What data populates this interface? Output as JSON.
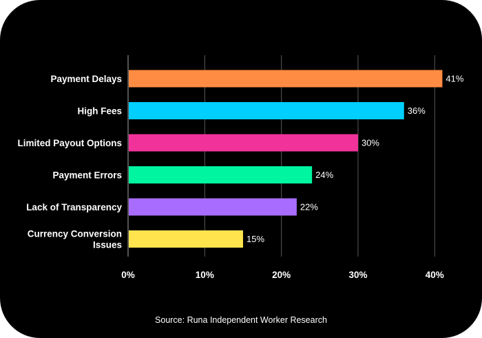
{
  "chart_data": {
    "type": "bar",
    "orientation": "horizontal",
    "categories": [
      [
        "Payment Delays"
      ],
      [
        "High Fees"
      ],
      [
        "Limited Payout Options"
      ],
      [
        "Payment Errors"
      ],
      [
        "Lack of Transparency"
      ],
      [
        "Currency Conversion",
        "Issues"
      ]
    ],
    "values": [
      41,
      36,
      30,
      24,
      22,
      15
    ],
    "value_labels": [
      "41%",
      "36%",
      "30%",
      "24%",
      "22%",
      "15%"
    ],
    "colors": [
      "#ff8c42",
      "#00cfff",
      "#f0329a",
      "#00f5a0",
      "#a86cff",
      "#ffe44d"
    ],
    "xlim": [
      0,
      41.5
    ],
    "xticks": [
      0,
      10,
      20,
      30,
      40
    ],
    "xtick_labels": [
      "0%",
      "10%",
      "20%",
      "30%",
      "40%"
    ],
    "grid": true,
    "title": "",
    "xlabel": "",
    "ylabel": ""
  },
  "source": "Source: Runa Independent Worker Research",
  "background_color": "#000000",
  "text_color": "#ffffff"
}
